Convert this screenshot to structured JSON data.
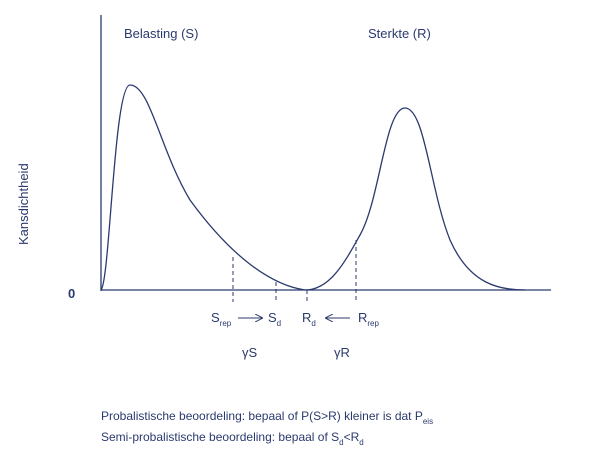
{
  "labels": {
    "load": "Belasting (S)",
    "strength": "Sterkte (R)",
    "y_axis": "Kansdichtheid",
    "origin": "0"
  },
  "markers": {
    "s_rep": {
      "base": "S",
      "sub": "rep"
    },
    "s_d": {
      "base": "S",
      "sub": "d"
    },
    "r_d": {
      "base": "R",
      "sub": "d"
    },
    "r_rep": {
      "base": "R",
      "sub": "rep"
    },
    "gamma_s": "γS",
    "gamma_r": "γR"
  },
  "caption": {
    "line1": {
      "text": "Probalistische beoordeling: bepaal of P(S>R) kleiner is dat P",
      "sub": "eis"
    },
    "line2": {
      "text": "Semi-probalistische beoordeling: bepaal of S",
      "sub1": "d",
      "mid": "<R",
      "sub2": "d"
    }
  }
}
